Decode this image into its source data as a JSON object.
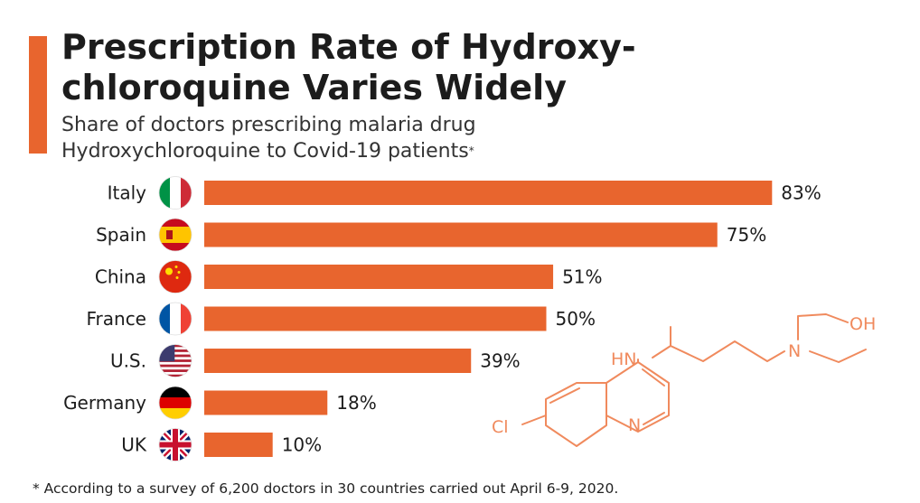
{
  "header": {
    "title_line1": "Prescription Rate of Hydroxy-",
    "title_line2": "chloroquine Varies Widely",
    "subtitle_line1": "Share of doctors prescribing malaria drug",
    "subtitle_line2": "Hydroxychloroquine to Covid-19 patients",
    "subtitle_marker": "*"
  },
  "footnote": "* According to a survey of 6,200 doctors in 30 countries carried out April 6-9, 2020.",
  "colors": {
    "accent": "#E8652E",
    "bar": "#E8652E",
    "molecule": "#F08A5D",
    "text": "#1c1c1c"
  },
  "chart_data": {
    "type": "bar",
    "orientation": "horizontal",
    "categories": [
      "Italy",
      "Spain",
      "China",
      "France",
      "U.S.",
      "Germany",
      "UK"
    ],
    "values": [
      83,
      75,
      51,
      50,
      39,
      18,
      10
    ],
    "value_labels": [
      "83%",
      "75%",
      "51%",
      "50%",
      "39%",
      "18%",
      "10%"
    ],
    "flag_icons": [
      "italy-flag-icon",
      "spain-flag-icon",
      "china-flag-icon",
      "france-flag-icon",
      "us-flag-icon",
      "germany-flag-icon",
      "uk-flag-icon"
    ],
    "xlim": [
      0,
      100
    ],
    "grid": false,
    "legend": "none"
  },
  "molecule": {
    "icon": "hydroxychloroquine-structure-icon",
    "labels": {
      "oh": "OH",
      "nh": "HN",
      "n_amine": "N",
      "n_ring": "N",
      "cl": "Cl"
    }
  }
}
